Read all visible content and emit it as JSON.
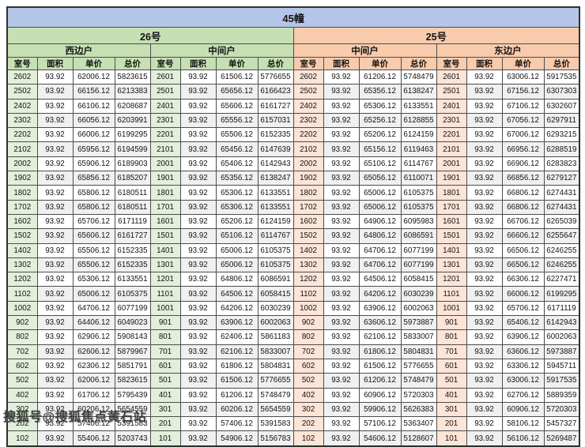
{
  "building_title": "45幢",
  "watermark": "搜狐号@搜狐焦点黄石站",
  "columns": [
    "室号",
    "面积",
    "单价",
    "总价"
  ],
  "colors": {
    "title_band": "#b4c6e7",
    "section_green": "#c6e0b4",
    "section_green_light": "#e2efda",
    "section_orange": "#f8cbad",
    "section_orange_light": "#fce4d6",
    "band_row": "#f0f0f0"
  },
  "sections": [
    {
      "label": "26号",
      "theme": "green",
      "units": [
        {
          "label": "西边户",
          "rows": [
            [
              "2602",
              "93.92",
              "62006.12",
              "5823615"
            ],
            [
              "2502",
              "93.92",
              "66156.12",
              "6213383"
            ],
            [
              "2402",
              "93.92",
              "66106.12",
              "6208687"
            ],
            [
              "2302",
              "93.92",
              "66056.12",
              "6203991"
            ],
            [
              "2202",
              "93.92",
              "66006.12",
              "6199295"
            ],
            [
              "2102",
              "93.92",
              "65956.12",
              "6194599"
            ],
            [
              "2002",
              "93.92",
              "65906.12",
              "6189903"
            ],
            [
              "1902",
              "93.92",
              "65856.12",
              "6185207"
            ],
            [
              "1802",
              "93.92",
              "65806.12",
              "6180511"
            ],
            [
              "1702",
              "93.92",
              "65806.12",
              "6180511"
            ],
            [
              "1602",
              "93.92",
              "65706.12",
              "6171119"
            ],
            [
              "1502",
              "93.92",
              "65606.12",
              "6161727"
            ],
            [
              "1402",
              "93.92",
              "65506.12",
              "6152335"
            ],
            [
              "1302",
              "93.92",
              "65506.12",
              "6152335"
            ],
            [
              "1202",
              "93.92",
              "65306.12",
              "6133551"
            ],
            [
              "1102",
              "93.92",
              "65006.12",
              "6105375"
            ],
            [
              "1002",
              "93.92",
              "64706.12",
              "6077199"
            ],
            [
              "902",
              "93.92",
              "64406.12",
              "6049023"
            ],
            [
              "802",
              "93.92",
              "62906.12",
              "5908143"
            ],
            [
              "702",
              "93.92",
              "62606.12",
              "5879967"
            ],
            [
              "602",
              "93.92",
              "62306.12",
              "5851791"
            ],
            [
              "502",
              "93.92",
              "62006.12",
              "5823615"
            ],
            [
              "402",
              "93.92",
              "61706.12",
              "5795439"
            ],
            [
              "302",
              "93.92",
              "60206.12",
              "5654559"
            ],
            [
              "202",
              "93.92",
              "57406.12",
              "5391583"
            ],
            [
              "102",
              "93.92",
              "55406.12",
              "5203743"
            ]
          ]
        },
        {
          "label": "中间户",
          "rows": [
            [
              "2601",
              "93.92",
              "61506.12",
              "5776655"
            ],
            [
              "2501",
              "93.92",
              "65656.12",
              "6166423"
            ],
            [
              "2401",
              "93.92",
              "65606.12",
              "6161727"
            ],
            [
              "2301",
              "93.92",
              "65556.12",
              "6157031"
            ],
            [
              "2201",
              "93.92",
              "65506.12",
              "6152335"
            ],
            [
              "2101",
              "93.92",
              "65456.12",
              "6147639"
            ],
            [
              "2001",
              "93.92",
              "65406.12",
              "6142943"
            ],
            [
              "1901",
              "93.92",
              "65356.12",
              "6138247"
            ],
            [
              "1801",
              "93.92",
              "65306.12",
              "6133551"
            ],
            [
              "1701",
              "93.92",
              "65306.12",
              "6133551"
            ],
            [
              "1601",
              "93.92",
              "65206.12",
              "6124159"
            ],
            [
              "1501",
              "93.92",
              "65106.12",
              "6114767"
            ],
            [
              "1401",
              "93.92",
              "65006.12",
              "6105375"
            ],
            [
              "1301",
              "93.92",
              "65006.12",
              "6105375"
            ],
            [
              "1201",
              "93.92",
              "64806.12",
              "6086591"
            ],
            [
              "1101",
              "93.92",
              "64506.12",
              "6058415"
            ],
            [
              "1001",
              "93.92",
              "64206.12",
              "6030239"
            ],
            [
              "901",
              "93.92",
              "63906.12",
              "6002063"
            ],
            [
              "801",
              "93.92",
              "62406.12",
              "5861183"
            ],
            [
              "701",
              "93.92",
              "62106.12",
              "5833007"
            ],
            [
              "601",
              "93.92",
              "61806.12",
              "5804831"
            ],
            [
              "501",
              "93.92",
              "61506.12",
              "5776655"
            ],
            [
              "401",
              "93.92",
              "61206.12",
              "5748479"
            ],
            [
              "301",
              "93.92",
              "60206.12",
              "5654559"
            ],
            [
              "201",
              "93.92",
              "57406.12",
              "5391583"
            ],
            [
              "101",
              "93.92",
              "54906.12",
              "5156783"
            ]
          ]
        }
      ]
    },
    {
      "label": "25号",
      "theme": "orange",
      "units": [
        {
          "label": "中间户",
          "rows": [
            [
              "2602",
              "93.92",
              "61206.12",
              "5748479"
            ],
            [
              "2502",
              "93.92",
              "65356.12",
              "6138247"
            ],
            [
              "2402",
              "93.92",
              "65306.12",
              "6133551"
            ],
            [
              "2302",
              "93.92",
              "65256.12",
              "6128855"
            ],
            [
              "2202",
              "93.92",
              "65206.12",
              "6124159"
            ],
            [
              "2102",
              "93.92",
              "65156.12",
              "6119463"
            ],
            [
              "2002",
              "93.92",
              "65106.12",
              "6114767"
            ],
            [
              "1902",
              "93.92",
              "65056.12",
              "6110071"
            ],
            [
              "1802",
              "93.92",
              "65006.12",
              "6105375"
            ],
            [
              "1702",
              "93.92",
              "65006.12",
              "6105375"
            ],
            [
              "1602",
              "93.92",
              "64906.12",
              "6095983"
            ],
            [
              "1502",
              "93.92",
              "64806.12",
              "6086591"
            ],
            [
              "1402",
              "93.92",
              "64706.12",
              "6077199"
            ],
            [
              "1302",
              "93.92",
              "64706.12",
              "6077199"
            ],
            [
              "1202",
              "93.92",
              "64506.12",
              "6058415"
            ],
            [
              "1102",
              "93.92",
              "64206.12",
              "6030239"
            ],
            [
              "1002",
              "93.92",
              "63906.12",
              "6002063"
            ],
            [
              "902",
              "93.92",
              "63606.12",
              "5973887"
            ],
            [
              "802",
              "93.92",
              "62106.12",
              "5833007"
            ],
            [
              "702",
              "93.92",
              "61806.12",
              "5804831"
            ],
            [
              "602",
              "93.92",
              "61506.12",
              "5776655"
            ],
            [
              "502",
              "93.92",
              "61206.12",
              "5748479"
            ],
            [
              "402",
              "93.92",
              "60906.12",
              "5720303"
            ],
            [
              "302",
              "93.92",
              "59906.12",
              "5626383"
            ],
            [
              "202",
              "93.92",
              "57106.12",
              "5363407"
            ],
            [
              "102",
              "93.92",
              "54606.12",
              "5128607"
            ]
          ]
        },
        {
          "label": "东边户",
          "rows": [
            [
              "2601",
              "93.92",
              "63006.12",
              "5917535"
            ],
            [
              "2501",
              "93.92",
              "67156.12",
              "6307303"
            ],
            [
              "2401",
              "93.92",
              "67106.12",
              "6302607"
            ],
            [
              "2301",
              "93.92",
              "67056.12",
              "6297911"
            ],
            [
              "2201",
              "93.92",
              "67006.12",
              "6293215"
            ],
            [
              "2101",
              "93.92",
              "66956.12",
              "6288519"
            ],
            [
              "2001",
              "93.92",
              "66906.12",
              "6283823"
            ],
            [
              "1901",
              "93.92",
              "66856.12",
              "6279127"
            ],
            [
              "1801",
              "93.92",
              "66806.12",
              "6274431"
            ],
            [
              "1701",
              "93.92",
              "66806.12",
              "6274431"
            ],
            [
              "1601",
              "93.92",
              "66706.12",
              "6265039"
            ],
            [
              "1501",
              "93.92",
              "66606.12",
              "6255647"
            ],
            [
              "1401",
              "93.92",
              "66506.12",
              "6246255"
            ],
            [
              "1301",
              "93.92",
              "66506.12",
              "6246255"
            ],
            [
              "1201",
              "93.92",
              "66306.12",
              "6227471"
            ],
            [
              "1101",
              "93.92",
              "66006.12",
              "6199295"
            ],
            [
              "1001",
              "93.92",
              "65706.12",
              "6171119"
            ],
            [
              "901",
              "93.92",
              "65406.12",
              "6142943"
            ],
            [
              "801",
              "93.92",
              "63906.12",
              "6002063"
            ],
            [
              "701",
              "93.92",
              "63606.12",
              "5973887"
            ],
            [
              "601",
              "93.92",
              "63306.12",
              "5945711"
            ],
            [
              "501",
              "93.92",
              "63006.12",
              "5917535"
            ],
            [
              "401",
              "93.92",
              "62706.12",
              "5889359"
            ],
            [
              "301",
              "93.92",
              "60906.12",
              "5720303"
            ],
            [
              "201",
              "93.92",
              "58106.12",
              "5457327"
            ],
            [
              "101",
              "93.92",
              "56106.12",
              "5269487"
            ]
          ]
        }
      ]
    }
  ]
}
